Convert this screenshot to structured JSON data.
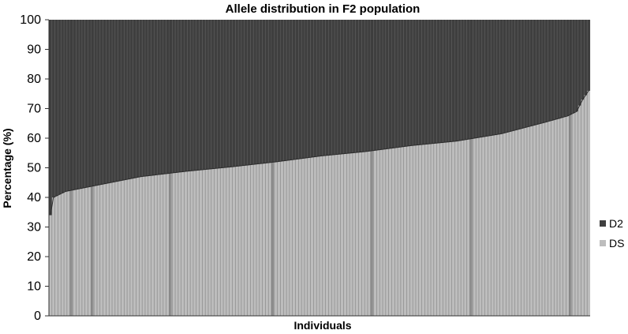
{
  "chart_data": {
    "type": "bar",
    "stacked": true,
    "title": "Allele distribution in F2 population",
    "xlabel": "Individuals",
    "ylabel": "Percentage (%)",
    "ylim": [
      0,
      100
    ],
    "yticks": [
      "0",
      "10",
      "20",
      "30",
      "40",
      "50",
      "60",
      "70",
      "80",
      "90",
      "100"
    ],
    "grid": false,
    "legend_position": "right",
    "n_individuals": 180,
    "ds_percent_profile": [
      {
        "index": 0,
        "value": 34
      },
      {
        "index": 1,
        "value": 40
      },
      {
        "index": 5,
        "value": 42
      },
      {
        "index": 15,
        "value": 44
      },
      {
        "index": 30,
        "value": 47
      },
      {
        "index": 45,
        "value": 48.8
      },
      {
        "index": 60,
        "value": 50.3
      },
      {
        "index": 75,
        "value": 52
      },
      {
        "index": 90,
        "value": 54
      },
      {
        "index": 105,
        "value": 55.5
      },
      {
        "index": 120,
        "value": 57.5
      },
      {
        "index": 135,
        "value": 59
      },
      {
        "index": 150,
        "value": 61.5
      },
      {
        "index": 165,
        "value": 65.5
      },
      {
        "index": 172,
        "value": 67.5
      },
      {
        "index": 175,
        "value": 69
      },
      {
        "index": 177,
        "value": 73
      },
      {
        "index": 179,
        "value": 76
      }
    ],
    "series": [
      {
        "name": "D2",
        "color": "#3f3f3f",
        "description": "complement of DS (100 - DS)"
      },
      {
        "name": "DS",
        "color": "#bdbdbd"
      }
    ],
    "separator_color": "#6a6a6a"
  }
}
